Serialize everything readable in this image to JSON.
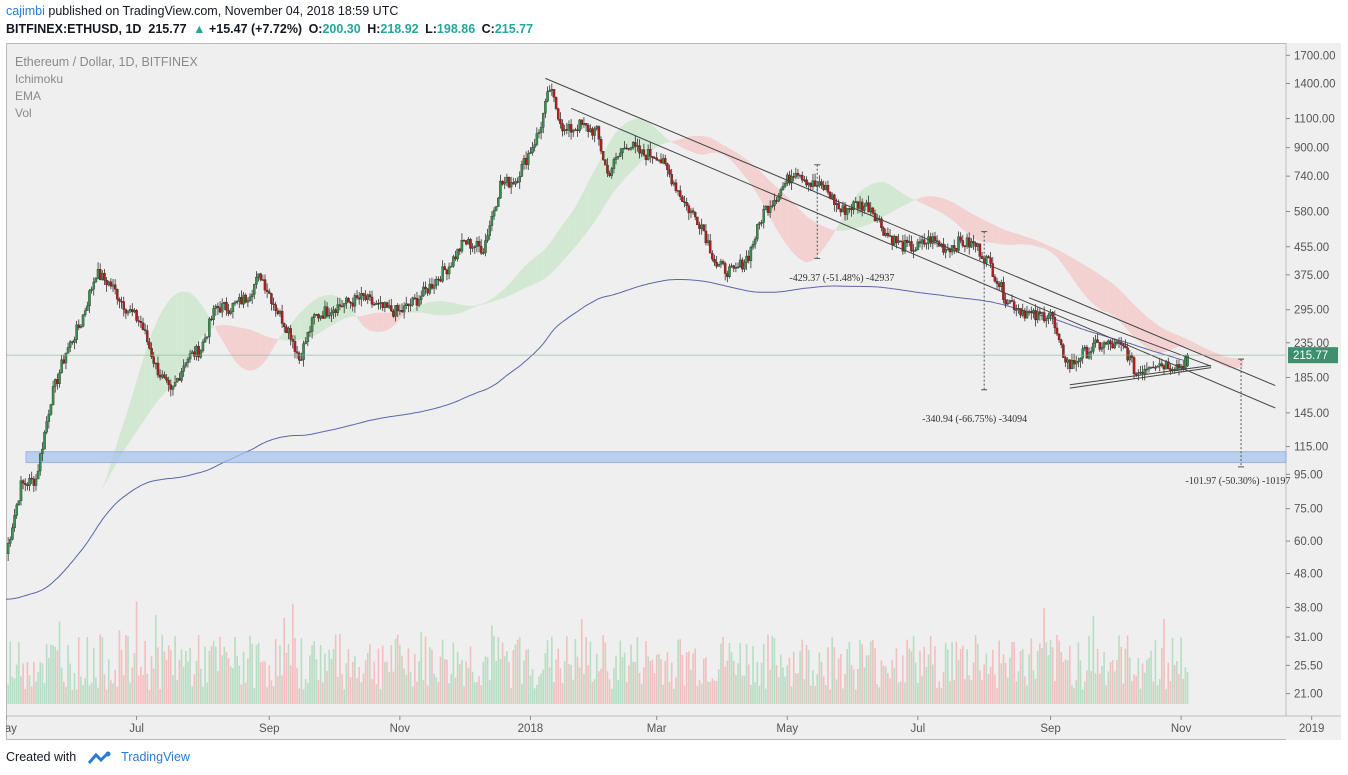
{
  "header": {
    "author": "cajimbi",
    "published_text": " published on TradingView.com, November 04, 2018 18:59 UTC",
    "symbol": "BITFINEX:ETHUSD, 1D",
    "last": "215.77",
    "change": "+15.47 (+7.72%)",
    "open_label": "O:",
    "open": "200.30",
    "high_label": "H:",
    "high": "218.92",
    "low_label": "L:",
    "low": "198.86",
    "close_label": "C:",
    "close": "215.77"
  },
  "legend": {
    "title": "Ethereum / Dollar, 1D, BITFINEX",
    "indicators": [
      "Ichimoku",
      "EMA",
      "Vol"
    ]
  },
  "footer": {
    "created_with": "Created with",
    "brand": "TradingView"
  },
  "colors": {
    "up": "#26a69a",
    "down": "#b71c1c",
    "bg": "#efefef",
    "ema": "#5b66a8",
    "cloud_bull": "#c9e6c9",
    "cloud_bear": "#f4c7c7",
    "support_zone": "#a9c4ee",
    "price_tag": "#3d8f6e"
  },
  "chart_data": {
    "type": "candlestick",
    "title": "Ethereum / Dollar, 1D, BITFINEX",
    "y_scale": "log",
    "ylim": [
      18,
      1850
    ],
    "x_range": [
      "2017-05-01",
      "2018-12-20"
    ],
    "x_tick_labels": [
      {
        "label": "May",
        "date": "2017-05-01"
      },
      {
        "label": "Jul",
        "date": "2017-07-01"
      },
      {
        "label": "Sep",
        "date": "2017-09-01"
      },
      {
        "label": "Nov",
        "date": "2017-11-01"
      },
      {
        "label": "2018",
        "date": "2018-01-01"
      },
      {
        "label": "Mar",
        "date": "2018-03-01"
      },
      {
        "label": "May",
        "date": "2018-05-01"
      },
      {
        "label": "Jul",
        "date": "2018-07-01"
      },
      {
        "label": "Sep",
        "date": "2018-09-01"
      },
      {
        "label": "Nov",
        "date": "2018-11-01"
      },
      {
        "label": "2019",
        "date": "2019-01-01"
      }
    ],
    "y_tick_labels": [
      "1700.00",
      "1400.00",
      "1100.00",
      "900.00",
      "740.00",
      "580.00",
      "455.00",
      "375.00",
      "295.00",
      "235.00",
      "185.00",
      "145.00",
      "115.00",
      "95.00",
      "75.00",
      "60.00",
      "48.00",
      "38.00",
      "31.00",
      "25.50",
      "21.00"
    ],
    "last_price": "215.77",
    "price_path": [
      [
        "2017-05-01",
        55
      ],
      [
        "2017-05-08",
        88
      ],
      [
        "2017-05-15",
        92
      ],
      [
        "2017-05-22",
        160
      ],
      [
        "2017-05-29",
        220
      ],
      [
        "2017-06-05",
        270
      ],
      [
        "2017-06-12",
        380
      ],
      [
        "2017-06-19",
        350
      ],
      [
        "2017-06-26",
        300
      ],
      [
        "2017-07-03",
        270
      ],
      [
        "2017-07-10",
        200
      ],
      [
        "2017-07-17",
        165
      ],
      [
        "2017-07-24",
        210
      ],
      [
        "2017-07-31",
        225
      ],
      [
        "2017-08-07",
        300
      ],
      [
        "2017-08-14",
        300
      ],
      [
        "2017-08-21",
        320
      ],
      [
        "2017-08-28",
        375
      ],
      [
        "2017-09-04",
        300
      ],
      [
        "2017-09-11",
        250
      ],
      [
        "2017-09-15",
        210
      ],
      [
        "2017-09-22",
        280
      ],
      [
        "2017-10-01",
        300
      ],
      [
        "2017-10-15",
        320
      ],
      [
        "2017-10-22",
        300
      ],
      [
        "2017-11-01",
        290
      ],
      [
        "2017-11-10",
        320
      ],
      [
        "2017-11-24",
        400
      ],
      [
        "2017-12-01",
        470
      ],
      [
        "2017-12-10",
        450
      ],
      [
        "2017-12-18",
        700
      ],
      [
        "2017-12-25",
        720
      ],
      [
        "2018-01-05",
        1000
      ],
      [
        "2018-01-10",
        1350
      ],
      [
        "2018-01-17",
        1000
      ],
      [
        "2018-01-24",
        1050
      ],
      [
        "2018-02-01",
        1000
      ],
      [
        "2018-02-06",
        750
      ],
      [
        "2018-02-15",
        930
      ],
      [
        "2018-02-22",
        860
      ],
      [
        "2018-03-01",
        860
      ],
      [
        "2018-03-08",
        730
      ],
      [
        "2018-03-15",
        600
      ],
      [
        "2018-03-22",
        530
      ],
      [
        "2018-03-29",
        400
      ],
      [
        "2018-04-06",
        380
      ],
      [
        "2018-04-13",
        430
      ],
      [
        "2018-04-20",
        580
      ],
      [
        "2018-04-27",
        660
      ],
      [
        "2018-05-05",
        780
      ],
      [
        "2018-05-12",
        700
      ],
      [
        "2018-05-19",
        680
      ],
      [
        "2018-05-26",
        580
      ],
      [
        "2018-06-02",
        610
      ],
      [
        "2018-06-09",
        600
      ],
      [
        "2018-06-16",
        500
      ],
      [
        "2018-06-23",
        460
      ],
      [
        "2018-06-30",
        450
      ],
      [
        "2018-07-07",
        480
      ],
      [
        "2018-07-14",
        450
      ],
      [
        "2018-07-21",
        470
      ],
      [
        "2018-07-28",
        460
      ],
      [
        "2018-08-04",
        400
      ],
      [
        "2018-08-11",
        320
      ],
      [
        "2018-08-18",
        295
      ],
      [
        "2018-08-25",
        280
      ],
      [
        "2018-09-01",
        290
      ],
      [
        "2018-09-05",
        230
      ],
      [
        "2018-09-10",
        200
      ],
      [
        "2018-09-15",
        215
      ],
      [
        "2018-09-22",
        230
      ],
      [
        "2018-09-29",
        232
      ],
      [
        "2018-10-06",
        225
      ],
      [
        "2018-10-11",
        190
      ],
      [
        "2018-10-18",
        205
      ],
      [
        "2018-10-25",
        203
      ],
      [
        "2018-11-01",
        200
      ],
      [
        "2018-11-04",
        215.77
      ]
    ],
    "annotations": [
      {
        "text": "-429.37 (-51.48%) -42937"
      },
      {
        "text": "-340.94 (-66.75%) -34094"
      },
      {
        "text": "-101.97 (-50.30%) -10197"
      }
    ],
    "support_zone": {
      "from": 103,
      "to": 111
    },
    "volume": {
      "note": "volume histogram with moving average; values not labeled on chart"
    }
  }
}
